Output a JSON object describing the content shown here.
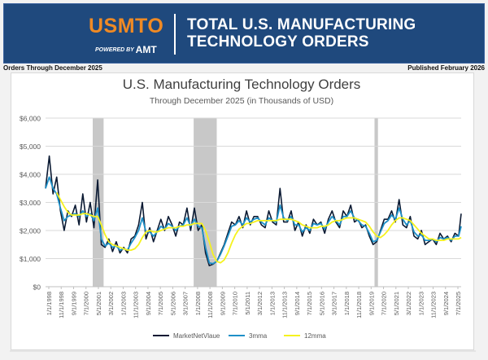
{
  "header": {
    "logo_text": "USMTO",
    "logo_sub": "POWERED BY",
    "logo_sub_brand": "AMT",
    "title_line1": "TOTAL U.S. MANUFACTURING",
    "title_line2": "TECHNOLOGY ORDERS"
  },
  "subheader": {
    "left": "Orders Through December 2025",
    "right": "Published February 2026"
  },
  "colors": {
    "banner": "#1f497d",
    "logo_orange": "#f08a24",
    "series_raw": "#0b1a33",
    "series_3mma": "#1e90c8",
    "series_12mma": "#f5f21f",
    "recession": "#c8c8c8",
    "grid": "#d9d9d9"
  },
  "chart_data": {
    "type": "line",
    "title": "U.S. Manufacturing Technology Orders",
    "subtitle": "Through December 2025 (in Thousands of USD)",
    "xlabel": "",
    "ylabel": "",
    "ylim": [
      0,
      6000
    ],
    "y_ticks": [
      0,
      1000,
      2000,
      3000,
      4000,
      5000,
      6000
    ],
    "y_tick_labels": [
      "$0",
      "$1,000",
      "$2,000",
      "$3,000",
      "$4,000",
      "$5,000",
      "$6,000"
    ],
    "x_range": [
      1998.0,
      2025.92
    ],
    "x_tick_labels": [
      "1/1/1998",
      "11/1/1998",
      "9/1/1999",
      "7/1/2000",
      "5/1/2001",
      "3/1/2002",
      "1/1/2003",
      "11/1/2003",
      "9/1/2004",
      "7/1/2005",
      "5/1/2006",
      "3/1/2007",
      "1/1/2008",
      "11/1/2008",
      "9/1/2009",
      "7/1/2010",
      "5/1/2011",
      "3/1/2012",
      "1/1/2013",
      "11/1/2013",
      "9/1/2014",
      "7/1/2015",
      "5/1/2016",
      "3/1/2017",
      "1/1/2018",
      "11/1/2018",
      "9/1/2019",
      "7/1/2020",
      "5/1/2021",
      "3/1/2022",
      "1/1/2023",
      "11/1/2023",
      "9/1/2024",
      "7/1/2025"
    ],
    "grid": true,
    "legend_position": "bottom-center",
    "shaded_periods": [
      {
        "label": "2001 recession",
        "start": 2001.17,
        "end": 2001.9
      },
      {
        "label": "2008-09 recession",
        "start": 2007.95,
        "end": 2009.5
      },
      {
        "label": "2020 recession",
        "start": 2020.1,
        "end": 2020.33
      }
    ],
    "x": [
      1998.0,
      1998.25,
      1998.5,
      1998.75,
      1999.0,
      1999.25,
      1999.5,
      1999.75,
      2000.0,
      2000.25,
      2000.5,
      2000.75,
      2001.0,
      2001.25,
      2001.5,
      2001.75,
      2002.0,
      2002.25,
      2002.5,
      2002.75,
      2003.0,
      2003.25,
      2003.5,
      2003.75,
      2004.0,
      2004.25,
      2004.5,
      2004.75,
      2005.0,
      2005.25,
      2005.5,
      2005.75,
      2006.0,
      2006.25,
      2006.5,
      2006.75,
      2007.0,
      2007.25,
      2007.5,
      2007.75,
      2008.0,
      2008.25,
      2008.5,
      2008.75,
      2009.0,
      2009.25,
      2009.5,
      2009.75,
      2010.0,
      2010.25,
      2010.5,
      2010.75,
      2011.0,
      2011.25,
      2011.5,
      2011.75,
      2012.0,
      2012.25,
      2012.5,
      2012.75,
      2013.0,
      2013.25,
      2013.5,
      2013.75,
      2014.0,
      2014.25,
      2014.5,
      2014.75,
      2015.0,
      2015.25,
      2015.5,
      2015.75,
      2016.0,
      2016.25,
      2016.5,
      2016.75,
      2017.0,
      2017.25,
      2017.5,
      2017.75,
      2018.0,
      2018.25,
      2018.5,
      2018.75,
      2019.0,
      2019.25,
      2019.5,
      2019.75,
      2020.0,
      2020.25,
      2020.5,
      2020.75,
      2021.0,
      2021.25,
      2021.5,
      2021.75,
      2022.0,
      2022.25,
      2022.5,
      2022.75,
      2023.0,
      2023.25,
      2023.5,
      2023.75,
      2024.0,
      2024.25,
      2024.5,
      2024.75,
      2025.0,
      2025.25,
      2025.5,
      2025.75,
      2025.92
    ],
    "series": [
      {
        "name": "MarketNetVlaue",
        "values": [
          3500,
          4650,
          3300,
          3900,
          2700,
          2000,
          2700,
          2500,
          2900,
          2200,
          3300,
          2300,
          3000,
          2100,
          3800,
          1500,
          1400,
          1700,
          1250,
          1600,
          1200,
          1400,
          1200,
          1700,
          1800,
          2200,
          3000,
          1700,
          2100,
          1600,
          2000,
          2400,
          2000,
          2500,
          2200,
          1800,
          2300,
          2200,
          2800,
          2000,
          2800,
          2000,
          2200,
          1200,
          750,
          800,
          900,
          1200,
          1500,
          1900,
          2300,
          2200,
          2500,
          2100,
          2700,
          2200,
          2500,
          2500,
          2200,
          2100,
          2700,
          2300,
          2200,
          3500,
          2300,
          2300,
          2700,
          2000,
          2300,
          1800,
          2200,
          1900,
          2400,
          2200,
          2300,
          1900,
          2400,
          2700,
          2300,
          2100,
          2700,
          2500,
          2900,
          2300,
          2400,
          2100,
          2200,
          1800,
          1500,
          1600,
          2000,
          2400,
          2400,
          2700,
          2300,
          3100,
          2200,
          2100,
          2500,
          1800,
          1700,
          2000,
          1500,
          1600,
          1700,
          1500,
          1900,
          1700,
          1800,
          1600,
          1900,
          1800,
          2600
        ]
      },
      {
        "name": "3mma",
        "values": [
          3500,
          3900,
          3500,
          3300,
          2800,
          2350,
          2500,
          2550,
          2600,
          2500,
          2700,
          2500,
          2600,
          2350,
          2800,
          1700,
          1450,
          1550,
          1400,
          1450,
          1300,
          1350,
          1300,
          1550,
          1750,
          2000,
          2450,
          1950,
          1950,
          1800,
          1950,
          2150,
          2050,
          2250,
          2150,
          2000,
          2150,
          2200,
          2450,
          2150,
          2400,
          2150,
          2100,
          1400,
          850,
          820,
          900,
          1150,
          1450,
          1800,
          2150,
          2200,
          2350,
          2200,
          2450,
          2300,
          2400,
          2450,
          2300,
          2200,
          2450,
          2350,
          2300,
          2900,
          2450,
          2350,
          2500,
          2200,
          2200,
          1950,
          2100,
          2000,
          2250,
          2200,
          2250,
          2050,
          2300,
          2500,
          2350,
          2200,
          2500,
          2500,
          2700,
          2450,
          2350,
          2200,
          2150,
          1900,
          1600,
          1650,
          1950,
          2250,
          2350,
          2550,
          2400,
          2800,
          2400,
          2200,
          2350,
          1950,
          1800,
          1850,
          1650,
          1650,
          1700,
          1600,
          1750,
          1700,
          1750,
          1650,
          1800,
          1800,
          2150
        ]
      },
      {
        "name": "12mma",
        "values": [
          null,
          null,
          null,
          3350,
          3100,
          2850,
          2650,
          2550,
          2550,
          2550,
          2600,
          2600,
          2550,
          2500,
          2500,
          2200,
          1850,
          1600,
          1500,
          1450,
          1400,
          1350,
          1300,
          1300,
          1350,
          1500,
          1750,
          1950,
          2000,
          1950,
          1950,
          2000,
          2050,
          2100,
          2100,
          2100,
          2150,
          2150,
          2200,
          2200,
          2250,
          2250,
          2250,
          2000,
          1600,
          1150,
          900,
          850,
          950,
          1200,
          1550,
          1850,
          2050,
          2150,
          2250,
          2250,
          2300,
          2350,
          2350,
          2350,
          2350,
          2350,
          2350,
          2400,
          2400,
          2400,
          2400,
          2350,
          2300,
          2200,
          2150,
          2100,
          2100,
          2100,
          2150,
          2150,
          2200,
          2300,
          2350,
          2350,
          2400,
          2450,
          2450,
          2450,
          2400,
          2350,
          2300,
          2150,
          1950,
          1800,
          1750,
          1850,
          2000,
          2200,
          2350,
          2450,
          2450,
          2400,
          2350,
          2200,
          2050,
          1900,
          1800,
          1700,
          1700,
          1650,
          1650,
          1650,
          1700,
          1700,
          1700,
          1700,
          1750
        ]
      }
    ]
  }
}
